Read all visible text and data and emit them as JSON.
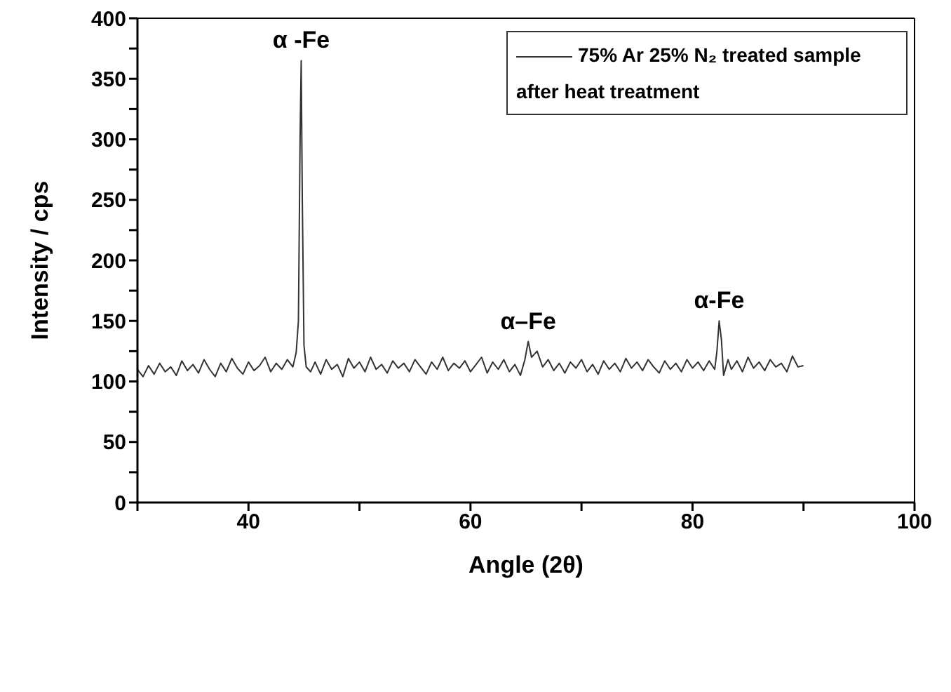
{
  "chart_data": {
    "type": "line",
    "xlabel": "Angle (2θ)",
    "ylabel": "Intensity / cps",
    "xlim": [
      30,
      100
    ],
    "xticks": [
      {
        "value": 30,
        "label": null
      },
      40,
      {
        "value": 50,
        "label": null
      },
      60,
      {
        "value": 70,
        "label": null
      },
      80,
      {
        "value": 90,
        "label": null
      },
      100
    ],
    "ylim": [
      0,
      400
    ],
    "yticks": [
      0,
      {
        "value": 25,
        "label": null
      },
      50,
      {
        "value": 75,
        "label": null
      },
      100,
      {
        "value": 125,
        "label": null
      },
      150,
      {
        "value": 175,
        "label": null
      },
      200,
      {
        "value": 225,
        "label": null
      },
      250,
      {
        "value": 275,
        "label": null
      },
      300,
      {
        "value": 325,
        "label": null
      },
      350,
      {
        "value": 375,
        "label": null
      },
      400
    ],
    "legend": "top right",
    "marker": "none",
    "line_style": "solid",
    "annotations": [
      {
        "text": "α -Fe",
        "x": 44.75,
        "y": 365
      },
      {
        "text": "α–Fe",
        "x": 65.2,
        "y": 133
      },
      {
        "text": "α-Fe",
        "x": 82.4,
        "y": 150
      }
    ],
    "series": [
      {
        "name": "75% Ar 25% N₂ treated sample after heat treatment",
        "color": "#333333",
        "x": [
          30,
          30.5,
          31,
          31.5,
          32,
          32.5,
          33,
          33.5,
          34,
          34.5,
          35,
          35.5,
          36,
          36.5,
          37,
          37.5,
          38,
          38.5,
          39,
          39.5,
          40,
          40.5,
          41,
          41.5,
          42,
          42.5,
          43,
          43.5,
          44,
          44.3,
          44.5,
          44.65,
          44.75,
          44.85,
          45,
          45.2,
          45.6,
          46,
          46.5,
          47,
          47.5,
          48,
          48.5,
          49,
          49.5,
          50,
          50.5,
          51,
          51.5,
          52,
          52.5,
          53,
          53.5,
          54,
          54.5,
          55,
          55.5,
          56,
          56.5,
          57,
          57.5,
          58,
          58.5,
          59,
          59.5,
          60,
          60.5,
          61,
          61.5,
          62,
          62.5,
          63,
          63.5,
          64,
          64.5,
          64.9,
          65.2,
          65.5,
          66,
          66.5,
          67,
          67.5,
          68,
          68.5,
          69,
          69.5,
          70,
          70.5,
          71,
          71.5,
          72,
          72.5,
          73,
          73.5,
          74,
          74.5,
          75,
          75.5,
          76,
          76.5,
          77,
          77.5,
          78,
          78.5,
          79,
          79.5,
          80,
          80.5,
          81,
          81.5,
          82,
          82.2,
          82.4,
          82.6,
          82.8,
          83.2,
          83.5,
          84,
          84.5,
          85,
          85.5,
          86,
          86.5,
          87,
          87.5,
          88,
          88.5,
          89,
          89.5,
          90
        ],
        "values": [
          110,
          104,
          113,
          106,
          115,
          108,
          112,
          105,
          117,
          109,
          114,
          107,
          118,
          110,
          104,
          115,
          108,
          119,
          111,
          106,
          116,
          109,
          113,
          120,
          108,
          115,
          110,
          118,
          112,
          124,
          150,
          300,
          365,
          250,
          130,
          112,
          108,
          116,
          106,
          118,
          110,
          114,
          104,
          119,
          111,
          116,
          108,
          120,
          110,
          114,
          107,
          117,
          111,
          115,
          108,
          118,
          112,
          106,
          116,
          110,
          120,
          109,
          115,
          111,
          117,
          108,
          114,
          120,
          107,
          116,
          110,
          118,
          108,
          114,
          105,
          118,
          133,
          120,
          125,
          112,
          118,
          109,
          115,
          107,
          116,
          111,
          118,
          108,
          114,
          106,
          117,
          110,
          115,
          108,
          119,
          111,
          116,
          109,
          118,
          112,
          107,
          117,
          110,
          115,
          108,
          118,
          111,
          116,
          109,
          117,
          110,
          125,
          150,
          135,
          105,
          118,
          110,
          117,
          108,
          120,
          111,
          116,
          109,
          118,
          112,
          115,
          108,
          121,
          112,
          113
        ]
      }
    ]
  }
}
